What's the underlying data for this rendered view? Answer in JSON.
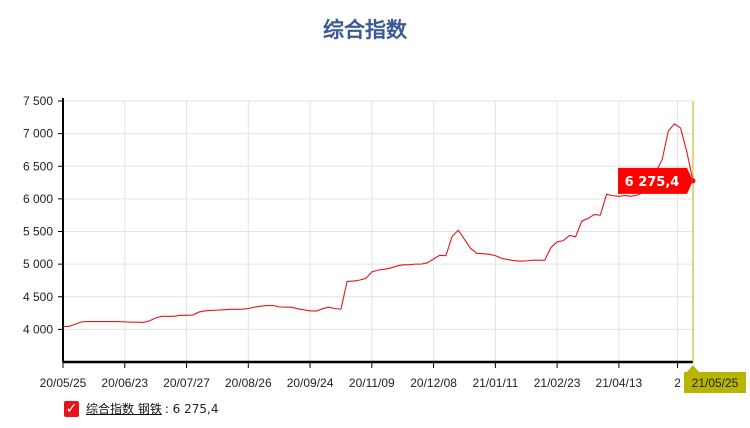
{
  "chart_data": {
    "type": "line",
    "title": "综合指数",
    "xlabel": "",
    "ylabel": "",
    "ylim": [
      3500,
      7500
    ],
    "y_ticks": [
      "4 000",
      "4 500",
      "5 000",
      "5 500",
      "6 000",
      "6 500",
      "7 000",
      "7 500"
    ],
    "y_tick_values": [
      4000,
      4500,
      5000,
      5500,
      6000,
      6500,
      7000,
      7500
    ],
    "x_ticks": [
      {
        "label": "20/05/25",
        "index": 0
      },
      {
        "label": "20/06/23",
        "index": 10
      },
      {
        "label": "20/07/27",
        "index": 20
      },
      {
        "label": "20/08/26",
        "index": 30
      },
      {
        "label": "20/09/24",
        "index": 40
      },
      {
        "label": "20/11/09",
        "index": 50
      },
      {
        "label": "20/12/08",
        "index": 60
      },
      {
        "label": "21/01/11",
        "index": 70
      },
      {
        "label": "21/02/23",
        "index": 80
      },
      {
        "label": "21/04/13",
        "index": 90
      },
      {
        "label": "2",
        "index": 99.5
      }
    ],
    "grid": true,
    "series": [
      {
        "name": "综合指数 钢铁",
        "color": "#e8141b",
        "values": [
          4045,
          4045,
          4080,
          4115,
          4120,
          4120,
          4120,
          4120,
          4120,
          4120,
          4115,
          4110,
          4110,
          4107,
          4130,
          4175,
          4200,
          4200,
          4200,
          4215,
          4215,
          4220,
          4265,
          4285,
          4290,
          4295,
          4300,
          4307,
          4307,
          4310,
          4320,
          4340,
          4355,
          4365,
          4365,
          4345,
          4340,
          4340,
          4315,
          4300,
          4285,
          4280,
          4315,
          4340,
          4320,
          4310,
          4735,
          4740,
          4755,
          4780,
          4880,
          4910,
          4920,
          4940,
          4970,
          4990,
          4990,
          5000,
          5000,
          5020,
          5080,
          5135,
          5130,
          5425,
          5520,
          5380,
          5240,
          5165,
          5160,
          5150,
          5130,
          5090,
          5070,
          5055,
          5045,
          5050,
          5060,
          5060,
          5060,
          5255,
          5340,
          5360,
          5440,
          5420,
          5660,
          5700,
          5760,
          5750,
          6070,
          6050,
          6040,
          6050,
          6040,
          6060,
          6100,
          6250,
          6420,
          6600,
          7040,
          7150,
          7085,
          6720,
          6275
        ]
      }
    ],
    "tooltip": {
      "value": "6 275,4",
      "date": "21/05/25",
      "color": "#ff0000"
    },
    "cursor_color": "#b8b500",
    "legend": {
      "position": "bottom-left",
      "name": "综合指数 钢铁",
      "value": ": 6 275,4",
      "checked": true
    }
  }
}
